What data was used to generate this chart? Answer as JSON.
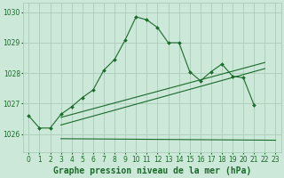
{
  "title": "Graphe pression niveau de la mer (hPa)",
  "bg_color": "#cce8d8",
  "grid_color": "#aaccb8",
  "line_color": "#1a6b2a",
  "xlim": [
    -0.5,
    23.5
  ],
  "ylim": [
    1025.4,
    1030.3
  ],
  "yticks": [
    1026,
    1027,
    1028,
    1029,
    1030
  ],
  "xticks": [
    0,
    1,
    2,
    3,
    4,
    5,
    6,
    7,
    8,
    9,
    10,
    11,
    12,
    13,
    14,
    15,
    16,
    17,
    18,
    19,
    20,
    21,
    22,
    23
  ],
  "line1_x": [
    0,
    1,
    2,
    3,
    4,
    5,
    6,
    7,
    8,
    9,
    10,
    11,
    12,
    13,
    14,
    15,
    16,
    17,
    18,
    19,
    20,
    21
  ],
  "line1_y": [
    1026.6,
    1026.2,
    1026.2,
    1026.65,
    1026.9,
    1027.2,
    1027.45,
    1028.1,
    1028.45,
    1029.1,
    1029.85,
    1029.75,
    1029.5,
    1029.0,
    1029.0,
    1028.05,
    1027.75,
    1028.05,
    1028.3,
    1027.9,
    1027.85,
    1026.95
  ],
  "line2_x": [
    3,
    23
  ],
  "line2_y": [
    1025.85,
    1025.8
  ],
  "line3_x": [
    3,
    22
  ],
  "line3_y": [
    1026.3,
    1028.15
  ],
  "line4_x": [
    3,
    22
  ],
  "line4_y": [
    1026.55,
    1028.35
  ],
  "xlabel_fontsize": 7,
  "tick_fontsize": 5.5
}
